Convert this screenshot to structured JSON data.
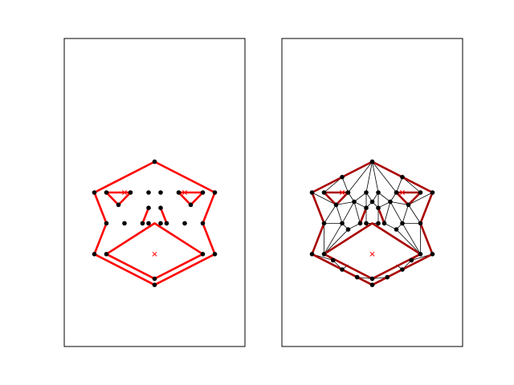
{
  "chart_data": [
    {
      "type": "scatter",
      "panel": "left",
      "title": "",
      "xlabel": "",
      "ylabel": "",
      "xlim": [
        -3,
        3
      ],
      "ylim": [
        -5,
        5
      ],
      "axis_ticks": "hidden",
      "colors": {
        "point": "#000000",
        "segment": "#ff0000",
        "marker": "#ff0000"
      },
      "points": [
        [
          0,
          1.0
        ],
        [
          -2,
          0
        ],
        [
          2,
          0
        ],
        [
          -1.6,
          0
        ],
        [
          1.6,
          0
        ],
        [
          -1.2,
          -0.4
        ],
        [
          1.2,
          -0.4
        ],
        [
          -0.8,
          0
        ],
        [
          0.8,
          0
        ],
        [
          -0.2,
          0
        ],
        [
          0.2,
          0
        ],
        [
          -0.2,
          -0.5
        ],
        [
          0.2,
          -0.5
        ],
        [
          -0.4,
          -1.0
        ],
        [
          0.4,
          -1.0
        ],
        [
          -1.6,
          -1.0
        ],
        [
          1.6,
          -1.0
        ],
        [
          -1.0,
          -1.0
        ],
        [
          1.0,
          -1.0
        ],
        [
          -1.6,
          -2.0
        ],
        [
          1.6,
          -2.0
        ],
        [
          -2,
          -2.0
        ],
        [
          2,
          -2.0
        ],
        [
          0,
          -2.8
        ],
        [
          0,
          -3.0
        ],
        [
          -0.2,
          -1.0
        ],
        [
          0.2,
          -1.0
        ]
      ],
      "constraint_polylines": [
        [
          [
            -2,
            0
          ],
          [
            0,
            1.0
          ],
          [
            2,
            0
          ],
          [
            1.6,
            -1.0
          ],
          [
            2,
            -2.0
          ],
          [
            0,
            -3.0
          ],
          [
            -2,
            -2.0
          ],
          [
            -1.6,
            -1.0
          ],
          [
            -2,
            0
          ]
        ],
        [
          [
            -1.6,
            0
          ],
          [
            -0.8,
            0
          ],
          [
            -1.2,
            -0.4
          ],
          [
            -1.6,
            0
          ]
        ],
        [
          [
            1.6,
            0
          ],
          [
            0.8,
            0
          ],
          [
            1.2,
            -0.4
          ],
          [
            1.6,
            0
          ]
        ],
        [
          [
            -0.2,
            -0.5
          ],
          [
            -0.4,
            -1.0
          ]
        ],
        [
          [
            0.2,
            -0.5
          ],
          [
            0.4,
            -1.0
          ]
        ],
        [
          [
            -1.6,
            -2.0
          ],
          [
            0,
            -1.0
          ],
          [
            1.6,
            -2.0
          ],
          [
            0,
            -2.8
          ],
          [
            -1.6,
            -2.0
          ]
        ]
      ],
      "hole_markers": [
        [
          -1.0,
          0
        ],
        [
          1.0,
          0
        ],
        [
          0,
          -2.0
        ]
      ]
    },
    {
      "type": "scatter",
      "panel": "right",
      "title": "",
      "xlabel": "",
      "ylabel": "",
      "xlim": [
        -3,
        3
      ],
      "ylim": [
        -5,
        5
      ],
      "axis_ticks": "hidden",
      "colors": {
        "point": "#000000",
        "edge": "#000000",
        "constraint": "#aa0000",
        "marker": "#ff0000"
      },
      "points": [
        [
          0,
          1.0
        ],
        [
          -2,
          0
        ],
        [
          2,
          0
        ],
        [
          -1.6,
          0
        ],
        [
          1.6,
          0
        ],
        [
          -1.0,
          0.5
        ],
        [
          1.0,
          0.5
        ],
        [
          -1.2,
          -0.4
        ],
        [
          1.2,
          -0.4
        ],
        [
          -0.8,
          0
        ],
        [
          0.8,
          0
        ],
        [
          -0.2,
          0
        ],
        [
          0.2,
          0
        ],
        [
          -0.2,
          -0.5
        ],
        [
          0.2,
          -0.5
        ],
        [
          -0.4,
          -1.0
        ],
        [
          0.4,
          -1.0
        ],
        [
          -1.6,
          -1.0
        ],
        [
          1.6,
          -1.0
        ],
        [
          -1.0,
          -1.0
        ],
        [
          1.0,
          -1.0
        ],
        [
          -1.6,
          -2.0
        ],
        [
          1.6,
          -2.0
        ],
        [
          -2,
          -2.0
        ],
        [
          2,
          -2.0
        ],
        [
          0,
          -2.8
        ],
        [
          0,
          -3.0
        ],
        [
          -0.2,
          -1.0
        ],
        [
          0.2,
          -1.0
        ],
        [
          -0.8,
          -1.2
        ],
        [
          0.8,
          -1.2
        ],
        [
          -1.0,
          -2.5
        ],
        [
          1.0,
          -2.5
        ],
        [
          -0.5,
          -2.75
        ],
        [
          0.5,
          -2.75
        ],
        [
          -1.3,
          -2.2
        ],
        [
          1.3,
          -2.2
        ],
        [
          0,
          -0.3
        ],
        [
          -0.6,
          -0.3
        ],
        [
          0.6,
          -0.3
        ]
      ],
      "constraint_polylines": [
        [
          [
            -2,
            0
          ],
          [
            0,
            1.0
          ],
          [
            2,
            0
          ],
          [
            1.6,
            -1.0
          ],
          [
            2,
            -2.0
          ],
          [
            0,
            -3.0
          ],
          [
            -2,
            -2.0
          ],
          [
            -1.6,
            -1.0
          ],
          [
            -2,
            0
          ]
        ],
        [
          [
            -1.6,
            0
          ],
          [
            -0.8,
            0
          ],
          [
            -1.2,
            -0.4
          ],
          [
            -1.6,
            0
          ]
        ],
        [
          [
            1.6,
            0
          ],
          [
            0.8,
            0
          ],
          [
            1.2,
            -0.4
          ],
          [
            1.6,
            0
          ]
        ],
        [
          [
            -0.2,
            -0.5
          ],
          [
            -0.4,
            -1.0
          ]
        ],
        [
          [
            0.2,
            -0.5
          ],
          [
            0.4,
            -1.0
          ]
        ],
        [
          [
            -1.6,
            -2.0
          ],
          [
            0,
            -1.0
          ],
          [
            1.6,
            -2.0
          ],
          [
            0,
            -2.8
          ],
          [
            -1.6,
            -2.0
          ]
        ]
      ],
      "mesh_edges": [
        [
          [
            0,
            1.0
          ],
          [
            -1.0,
            0.5
          ]
        ],
        [
          [
            0,
            1.0
          ],
          [
            1.0,
            0.5
          ]
        ],
        [
          [
            0,
            1.0
          ],
          [
            -0.2,
            0
          ]
        ],
        [
          [
            0,
            1.0
          ],
          [
            0.2,
            0
          ]
        ],
        [
          [
            0,
            1.0
          ],
          [
            -0.8,
            0
          ]
        ],
        [
          [
            0,
            1.0
          ],
          [
            0.8,
            0
          ]
        ],
        [
          [
            -2,
            0
          ],
          [
            -1.0,
            0.5
          ]
        ],
        [
          [
            -1.0,
            0.5
          ],
          [
            -1.6,
            0
          ]
        ],
        [
          [
            -1.0,
            0.5
          ],
          [
            -0.8,
            0
          ]
        ],
        [
          [
            2,
            0
          ],
          [
            1.0,
            0.5
          ]
        ],
        [
          [
            1.0,
            0.5
          ],
          [
            1.6,
            0
          ]
        ],
        [
          [
            1.0,
            0.5
          ],
          [
            0.8,
            0
          ]
        ],
        [
          [
            -2,
            0
          ],
          [
            -1.2,
            -0.4
          ]
        ],
        [
          [
            -2,
            0
          ],
          [
            -1.6,
            -1.0
          ]
        ],
        [
          [
            -1.2,
            -0.4
          ],
          [
            -1.6,
            -1.0
          ]
        ],
        [
          [
            -1.2,
            -0.4
          ],
          [
            -1.0,
            -1.0
          ]
        ],
        [
          [
            -1.6,
            -1.0
          ],
          [
            -1.0,
            -1.0
          ]
        ],
        [
          [
            -0.8,
            0
          ],
          [
            -0.6,
            -0.3
          ]
        ],
        [
          [
            -0.6,
            -0.3
          ],
          [
            -1.2,
            -0.4
          ]
        ],
        [
          [
            -0.6,
            -0.3
          ],
          [
            -1.0,
            -1.0
          ]
        ],
        [
          [
            -0.6,
            -0.3
          ],
          [
            -0.4,
            -1.0
          ]
        ],
        [
          [
            -0.6,
            -0.3
          ],
          [
            -0.2,
            -0.5
          ]
        ],
        [
          [
            -0.2,
            0
          ],
          [
            -0.6,
            -0.3
          ]
        ],
        [
          [
            -0.2,
            0
          ],
          [
            -0.2,
            -0.5
          ]
        ],
        [
          [
            -0.2,
            0
          ],
          [
            0,
            -0.3
          ]
        ],
        [
          [
            0.2,
            0
          ],
          [
            0,
            -0.3
          ]
        ],
        [
          [
            0.2,
            0
          ],
          [
            0.2,
            -0.5
          ]
        ],
        [
          [
            0,
            -0.3
          ],
          [
            -0.2,
            -0.5
          ]
        ],
        [
          [
            0,
            -0.3
          ],
          [
            0.2,
            -0.5
          ]
        ],
        [
          [
            -0.2,
            -0.5
          ],
          [
            -0.2,
            -1.0
          ]
        ],
        [
          [
            0.2,
            -0.5
          ],
          [
            0.2,
            -1.0
          ]
        ],
        [
          [
            -0.2,
            -1.0
          ],
          [
            0.2,
            -1.0
          ]
        ],
        [
          [
            -0.2,
            -1.0
          ],
          [
            0,
            -1.0
          ]
        ],
        [
          [
            2,
            0
          ],
          [
            1.2,
            -0.4
          ]
        ],
        [
          [
            2,
            0
          ],
          [
            1.6,
            -1.0
          ]
        ],
        [
          [
            1.2,
            -0.4
          ],
          [
            1.6,
            -1.0
          ]
        ],
        [
          [
            1.2,
            -0.4
          ],
          [
            1.0,
            -1.0
          ]
        ],
        [
          [
            1.6,
            -1.0
          ],
          [
            1.0,
            -1.0
          ]
        ],
        [
          [
            0.8,
            0
          ],
          [
            0.6,
            -0.3
          ]
        ],
        [
          [
            0.6,
            -0.3
          ],
          [
            1.2,
            -0.4
          ]
        ],
        [
          [
            0.6,
            -0.3
          ],
          [
            1.0,
            -1.0
          ]
        ],
        [
          [
            0.6,
            -0.3
          ],
          [
            0.4,
            -1.0
          ]
        ],
        [
          [
            0.6,
            -0.3
          ],
          [
            0.2,
            -0.5
          ]
        ],
        [
          [
            0.2,
            0
          ],
          [
            0.6,
            -0.3
          ]
        ],
        [
          [
            -1.0,
            -1.0
          ],
          [
            -0.8,
            -1.2
          ]
        ],
        [
          [
            -0.8,
            -1.2
          ],
          [
            -0.4,
            -1.0
          ]
        ],
        [
          [
            -0.8,
            -1.2
          ],
          [
            -1.6,
            -2.0
          ]
        ],
        [
          [
            -1.6,
            -1.0
          ],
          [
            -1.6,
            -2.0
          ]
        ],
        [
          [
            -1.6,
            -1.0
          ],
          [
            -2,
            -2.0
          ]
        ],
        [
          [
            -1.0,
            -1.0
          ],
          [
            -1.6,
            -2.0
          ]
        ],
        [
          [
            1.0,
            -1.0
          ],
          [
            0.8,
            -1.2
          ]
        ],
        [
          [
            0.8,
            -1.2
          ],
          [
            0.4,
            -1.0
          ]
        ],
        [
          [
            0.8,
            -1.2
          ],
          [
            1.6,
            -2.0
          ]
        ],
        [
          [
            1.6,
            -1.0
          ],
          [
            1.6,
            -2.0
          ]
        ],
        [
          [
            1.6,
            -1.0
          ],
          [
            2,
            -2.0
          ]
        ],
        [
          [
            1.0,
            -1.0
          ],
          [
            1.6,
            -2.0
          ]
        ],
        [
          [
            -2,
            -2.0
          ],
          [
            -1.3,
            -2.2
          ]
        ],
        [
          [
            -1.6,
            -2.0
          ],
          [
            -1.3,
            -2.2
          ]
        ],
        [
          [
            -1.3,
            -2.2
          ],
          [
            -1.0,
            -2.5
          ]
        ],
        [
          [
            -1.0,
            -2.5
          ],
          [
            -0.5,
            -2.75
          ]
        ],
        [
          [
            -0.5,
            -2.75
          ],
          [
            0,
            -2.8
          ]
        ],
        [
          [
            -0.5,
            -2.75
          ],
          [
            0,
            -3.0
          ]
        ],
        [
          [
            -1.0,
            -2.5
          ],
          [
            -0.8,
            -2.35
          ]
        ],
        [
          [
            2,
            -2.0
          ],
          [
            1.3,
            -2.2
          ]
        ],
        [
          [
            1.6,
            -2.0
          ],
          [
            1.3,
            -2.2
          ]
        ],
        [
          [
            1.3,
            -2.2
          ],
          [
            1.0,
            -2.5
          ]
        ],
        [
          [
            1.0,
            -2.5
          ],
          [
            0.5,
            -2.75
          ]
        ],
        [
          [
            0.5,
            -2.75
          ],
          [
            0,
            -2.8
          ]
        ],
        [
          [
            0.5,
            -2.75
          ],
          [
            0,
            -3.0
          ]
        ],
        [
          [
            1.0,
            -2.5
          ],
          [
            0.8,
            -2.35
          ]
        ]
      ],
      "hole_markers": [
        [
          -1.0,
          0
        ],
        [
          1.0,
          0
        ],
        [
          0,
          -2.0
        ]
      ]
    }
  ]
}
